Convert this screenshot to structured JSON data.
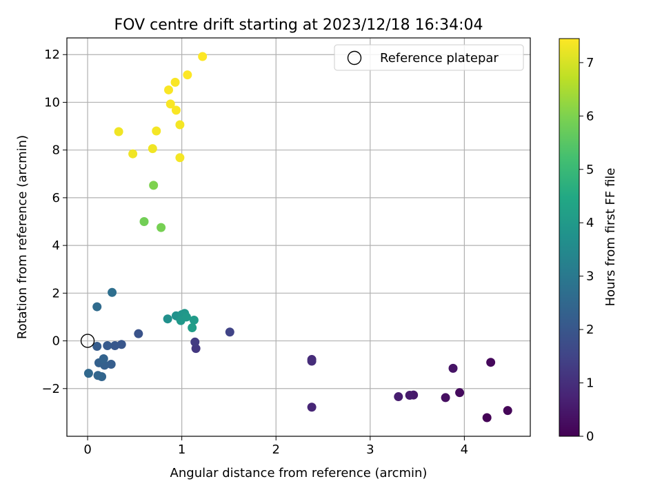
{
  "chart_data": {
    "type": "scatter",
    "title": "FOV centre drift starting at 2023/12/18 16:34:04",
    "xlabel": "Angular distance from reference (arcmin)",
    "ylabel": "Rotation from reference (arcmin)",
    "xlim": [
      -0.22,
      4.7
    ],
    "ylim": [
      -4.0,
      12.7
    ],
    "xticks": [
      0,
      1,
      2,
      3,
      4
    ],
    "yticks": [
      -2,
      0,
      2,
      4,
      6,
      8,
      10,
      12
    ],
    "xtick_labels": [
      "0",
      "1",
      "2",
      "3",
      "4"
    ],
    "ytick_labels": [
      "−2",
      "0",
      "2",
      "4",
      "6",
      "8",
      "10",
      "12"
    ],
    "grid": true,
    "colormap": "viridis",
    "colorbar": {
      "label": "Hours from first FF file",
      "range": [
        0,
        7.45
      ],
      "ticks": [
        0,
        1,
        2,
        3,
        4,
        5,
        6,
        7
      ],
      "tick_labels": [
        "0",
        "1",
        "2",
        "3",
        "4",
        "5",
        "6",
        "7"
      ]
    },
    "legend": {
      "position": "top-right",
      "entries": [
        "Reference platepar"
      ]
    },
    "reference_point": {
      "x": 0,
      "y": 0
    },
    "series": [
      {
        "points": [
          {
            "x": 4.24,
            "y": -3.22,
            "c": 0.05
          },
          {
            "x": 4.46,
            "y": -2.92,
            "c": 0.1
          },
          {
            "x": 4.28,
            "y": -0.9,
            "c": 0.15
          },
          {
            "x": 3.95,
            "y": -2.17,
            "c": 0.2
          },
          {
            "x": 3.8,
            "y": -2.38,
            "c": 0.3
          },
          {
            "x": 3.88,
            "y": -1.15,
            "c": 0.4
          },
          {
            "x": 3.46,
            "y": -2.27,
            "c": 0.5
          },
          {
            "x": 3.42,
            "y": -2.28,
            "c": 0.55
          },
          {
            "x": 3.3,
            "y": -2.34,
            "c": 0.6
          },
          {
            "x": 2.38,
            "y": -2.78,
            "c": 0.8
          },
          {
            "x": 2.38,
            "y": -0.78,
            "c": 0.9
          },
          {
            "x": 2.38,
            "y": -0.85,
            "c": 0.95
          },
          {
            "x": 1.15,
            "y": -0.32,
            "c": 1.2
          },
          {
            "x": 1.14,
            "y": -0.05,
            "c": 1.3
          },
          {
            "x": 1.51,
            "y": 0.37,
            "c": 1.5
          },
          {
            "x": 0.54,
            "y": 0.3,
            "c": 1.9
          },
          {
            "x": 0.36,
            "y": -0.15,
            "c": 2.0
          },
          {
            "x": 0.29,
            "y": -0.2,
            "c": 2.05
          },
          {
            "x": 0.21,
            "y": -0.2,
            "c": 2.1
          },
          {
            "x": 0.1,
            "y": -0.23,
            "c": 2.15
          },
          {
            "x": 0.25,
            "y": -0.98,
            "c": 2.2
          },
          {
            "x": 0.18,
            "y": -1.02,
            "c": 2.25
          },
          {
            "x": 0.12,
            "y": -0.92,
            "c": 2.3
          },
          {
            "x": 0.17,
            "y": -0.75,
            "c": 2.35
          },
          {
            "x": 0.15,
            "y": -1.5,
            "c": 2.4
          },
          {
            "x": 0.11,
            "y": -1.45,
            "c": 2.45
          },
          {
            "x": 0.01,
            "y": -1.36,
            "c": 2.5
          },
          {
            "x": 0.1,
            "y": 1.43,
            "c": 2.6
          },
          {
            "x": 0.26,
            "y": 2.03,
            "c": 2.7
          },
          {
            "x": 0.85,
            "y": 0.92,
            "c": 3.7
          },
          {
            "x": 0.94,
            "y": 1.05,
            "c": 3.75
          },
          {
            "x": 0.98,
            "y": 0.95,
            "c": 3.8
          },
          {
            "x": 1.0,
            "y": 1.1,
            "c": 3.85
          },
          {
            "x": 1.03,
            "y": 1.15,
            "c": 3.9
          },
          {
            "x": 0.99,
            "y": 0.85,
            "c": 3.95
          },
          {
            "x": 1.05,
            "y": 1.0,
            "c": 4.0
          },
          {
            "x": 1.13,
            "y": 0.87,
            "c": 4.05
          },
          {
            "x": 1.11,
            "y": 0.55,
            "c": 4.1
          },
          {
            "x": 0.6,
            "y": 5.0,
            "c": 5.85
          },
          {
            "x": 0.78,
            "y": 4.75,
            "c": 5.9
          },
          {
            "x": 0.7,
            "y": 6.52,
            "c": 6.0
          },
          {
            "x": 0.33,
            "y": 8.77,
            "c": 7.3
          },
          {
            "x": 0.48,
            "y": 7.84,
            "c": 7.3
          },
          {
            "x": 0.69,
            "y": 8.06,
            "c": 7.3
          },
          {
            "x": 0.73,
            "y": 8.8,
            "c": 7.35
          },
          {
            "x": 0.98,
            "y": 7.68,
            "c": 7.35
          },
          {
            "x": 0.98,
            "y": 9.06,
            "c": 7.35
          },
          {
            "x": 0.94,
            "y": 9.67,
            "c": 7.4
          },
          {
            "x": 0.88,
            "y": 9.93,
            "c": 7.4
          },
          {
            "x": 0.86,
            "y": 10.52,
            "c": 7.4
          },
          {
            "x": 0.93,
            "y": 10.84,
            "c": 7.4
          },
          {
            "x": 1.06,
            "y": 11.15,
            "c": 7.45
          },
          {
            "x": 1.22,
            "y": 11.92,
            "c": 7.45
          }
        ]
      }
    ]
  }
}
